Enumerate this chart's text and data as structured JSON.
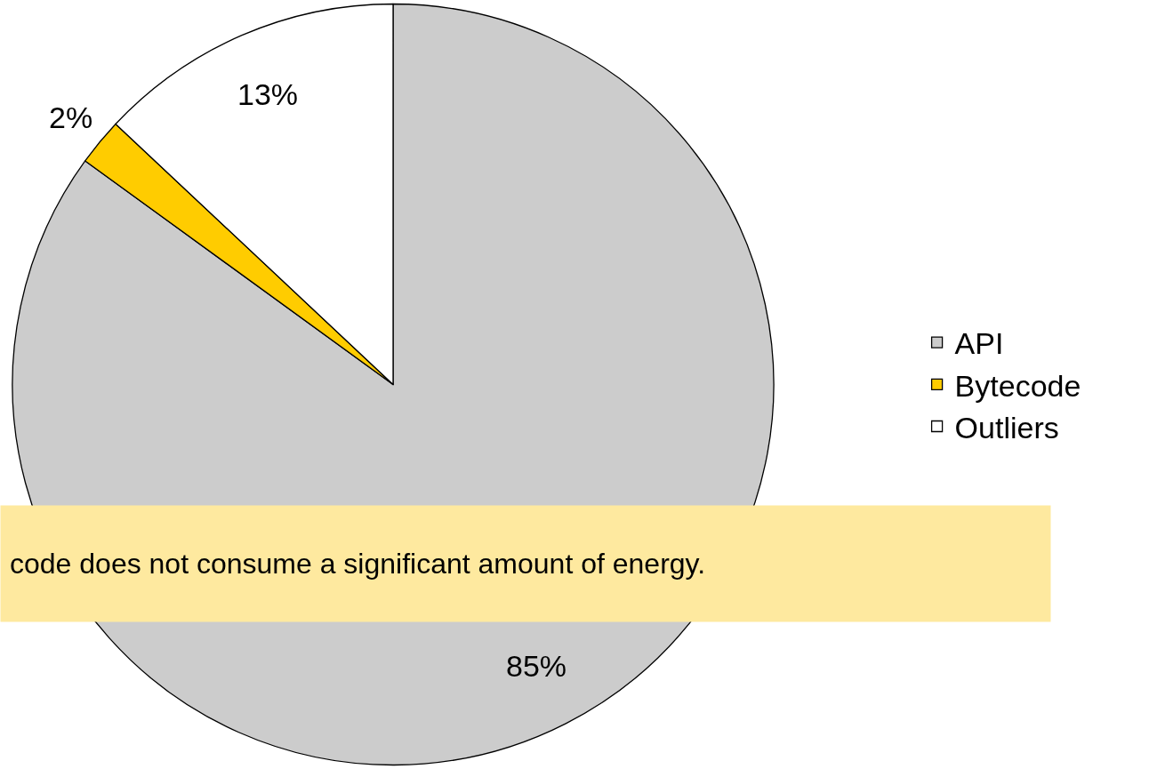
{
  "chart_data": {
    "type": "pie",
    "categories": [
      "API",
      "Bytecode",
      "Outliers"
    ],
    "values": [
      85,
      2,
      13
    ],
    "value_labels": [
      "85%",
      "2%",
      "13%"
    ],
    "colors": [
      "#cccccc",
      "#ffcc00",
      "#ffffff"
    ],
    "legend": "right",
    "annotations": [
      "code does not consume a significant amount of energy."
    ]
  }
}
